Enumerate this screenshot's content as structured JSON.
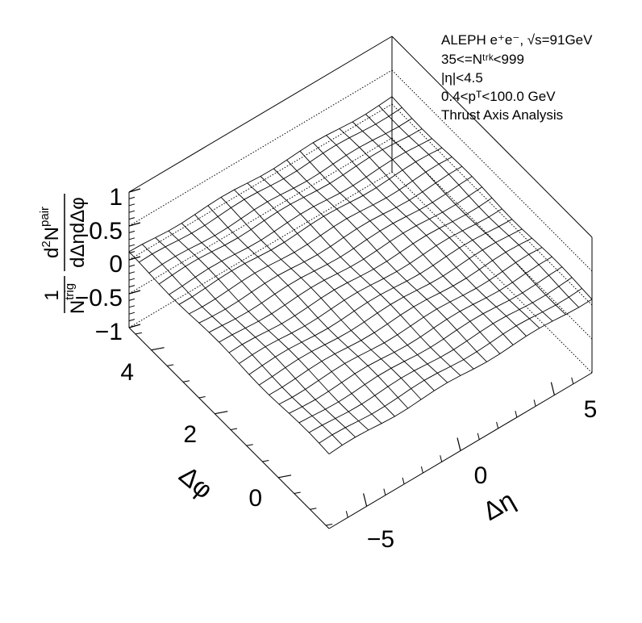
{
  "chart_data": {
    "type": "surface",
    "annotations": [
      "ALEPH e⁺e⁻, √s=91GeV",
      "35<=Nᵗʳᵏ<999",
      "|η|<4.5",
      "0.4<pᵀ<100.0 GeV",
      "Thrust Axis Analysis"
    ],
    "x_axis": {
      "label": "Δη",
      "range": [
        -7,
        7
      ],
      "ticks": [
        -5,
        0,
        5
      ],
      "tick_labels": [
        "−5",
        "0",
        "5"
      ]
    },
    "y_axis": {
      "label": "Δφ",
      "range": [
        -1.6,
        4.7
      ],
      "ticks": [
        0,
        2,
        4
      ],
      "tick_labels": [
        "0",
        "2",
        "4"
      ]
    },
    "z_axis": {
      "label": "1/N^trig d²N^pair/dΔηdΔφ",
      "range": [
        -1,
        1
      ],
      "ticks": [
        -1,
        -0.5,
        0,
        0.5,
        1
      ],
      "tick_labels": [
        "−1",
        "−0.5",
        "0",
        "0.5",
        "1"
      ]
    },
    "surface": {
      "nx": 20,
      "ny": 20,
      "z": 0.1
    },
    "grid": true
  }
}
